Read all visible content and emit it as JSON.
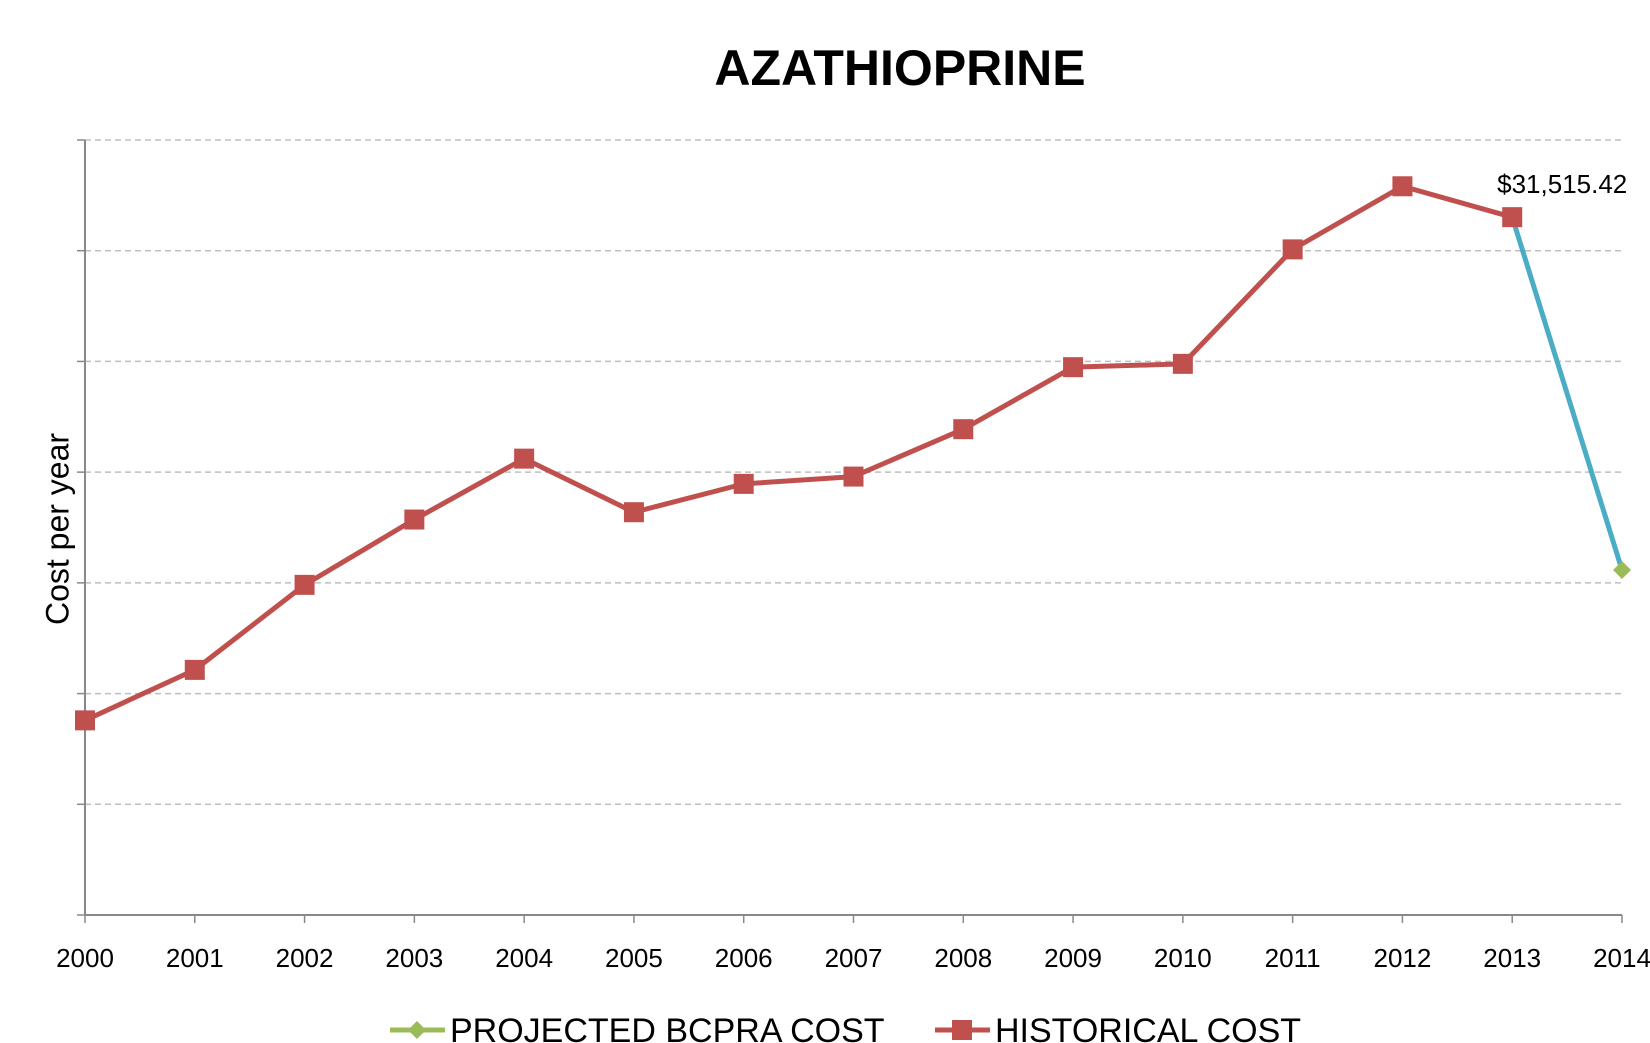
{
  "chart_data": {
    "type": "line",
    "title": "AZATHIOPRINE",
    "y_label": "Cost per year",
    "categories": [
      "2000",
      "2001",
      "2002",
      "2003",
      "2004",
      "2005",
      "2006",
      "2007",
      "2008",
      "2009",
      "2010",
      "2011",
      "2012",
      "2013",
      "2014"
    ],
    "series": [
      {
        "name": "PROJECTED BCPRA COST",
        "color": "#9bbb59",
        "line_color": "#4bacc6",
        "marker": "diamond",
        "values": [
          null,
          null,
          null,
          null,
          null,
          null,
          null,
          null,
          null,
          null,
          null,
          null,
          null,
          31515.42,
          15580
        ]
      },
      {
        "name": "HISTORICAL COST",
        "color": "#c0504d",
        "marker": "square",
        "values": [
          8790,
          11070,
          14910,
          17860,
          20610,
          18190,
          19470,
          19800,
          21940,
          24740,
          24890,
          30060,
          32910,
          31515.42,
          null
        ],
        "value_labels": [
          null,
          null,
          null,
          null,
          null,
          null,
          null,
          null,
          null,
          null,
          null,
          null,
          null,
          "$31,515.42",
          null
        ]
      }
    ],
    "ylim": [
      0,
      35000
    ],
    "yticks": [
      0,
      5000,
      10000,
      15000,
      20000,
      25000,
      30000,
      35000
    ],
    "grid": true,
    "legend": "bottom"
  }
}
